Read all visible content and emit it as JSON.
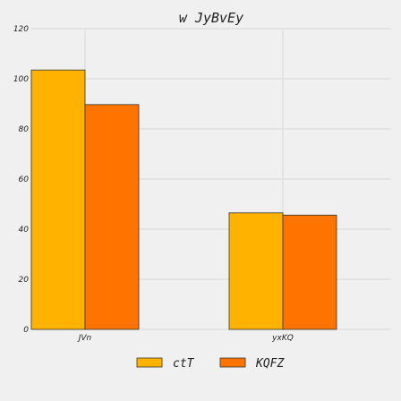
{
  "chart_data": {
    "type": "bar",
    "title": "w JyBvEy",
    "xlabel": "",
    "ylabel": "",
    "categories": [
      "JVn",
      "yxKQ"
    ],
    "series": [
      {
        "name": "ctT",
        "values": [
          103.5,
          46.5
        ],
        "color": "#ffb300"
      },
      {
        "name": "KQFZ",
        "values": [
          89.7,
          45.6
        ],
        "color": "#ff7300"
      }
    ],
    "ylim": [
      0,
      120
    ],
    "yticks": [
      0,
      20,
      40,
      60,
      80,
      100,
      120
    ],
    "grid": true,
    "legend_position": "bottom-center"
  }
}
